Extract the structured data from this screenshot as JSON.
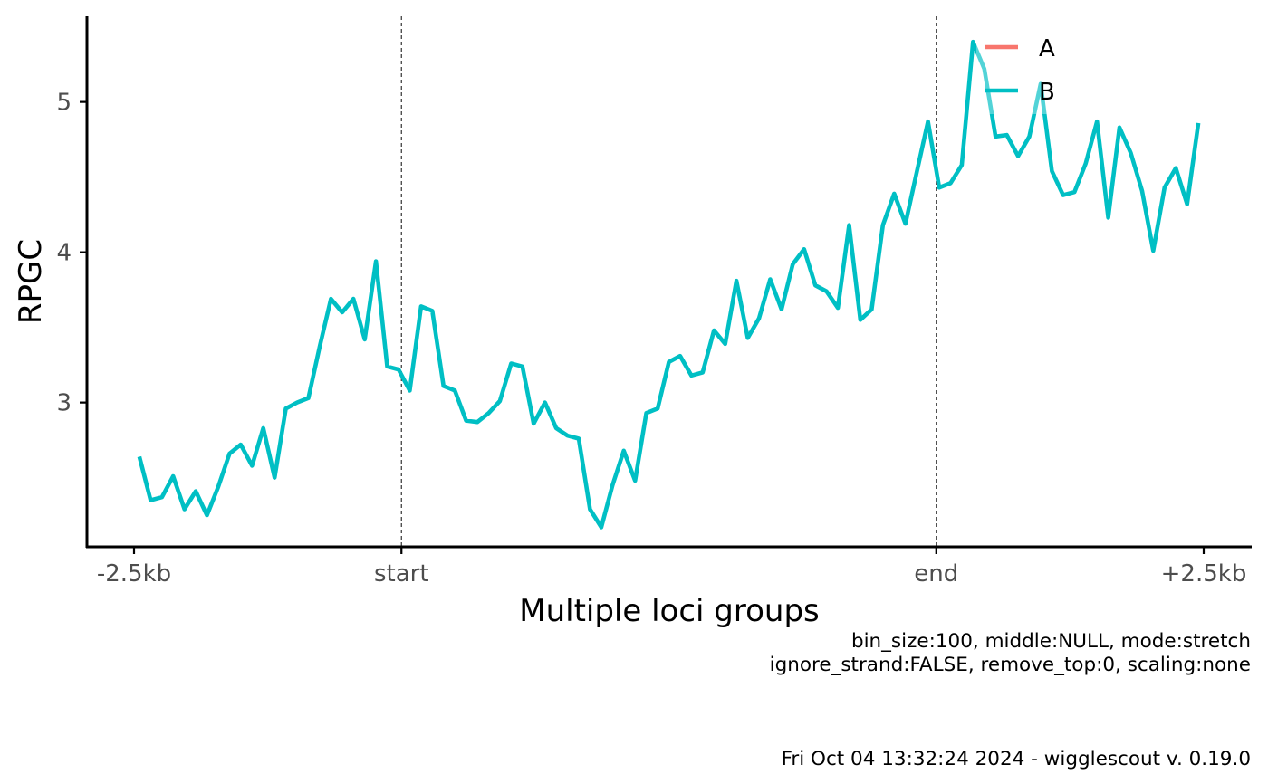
{
  "chart_data": {
    "type": "line",
    "title": "",
    "xlabel": "Multiple loci groups",
    "ylabel": "RPGC",
    "x_tick_labels": [
      "-2.5kb",
      "start",
      "end",
      "+2.5kb"
    ],
    "y_ticks": [
      3,
      4,
      5
    ],
    "ylim": [
      2.04,
      5.57
    ],
    "x_positions": {
      "-2.5kb": 0,
      "start": 25,
      "end": 75,
      "+2.5kb": 100
    },
    "vlines_at": [
      "start",
      "end"
    ],
    "legend_position": "top-right",
    "series": [
      {
        "name": "A",
        "color": "#F8766D",
        "values": []
      },
      {
        "name": "B",
        "color": "#00BFC4",
        "values": [
          2.64,
          2.35,
          2.37,
          2.51,
          2.29,
          2.41,
          2.25,
          2.44,
          2.66,
          2.72,
          2.58,
          2.83,
          2.5,
          2.96,
          3.0,
          3.03,
          3.37,
          3.69,
          3.6,
          3.69,
          3.42,
          3.94,
          3.24,
          3.22,
          3.08,
          3.64,
          3.61,
          3.11,
          3.08,
          2.88,
          2.87,
          2.93,
          3.01,
          3.26,
          3.24,
          2.86,
          3.0,
          2.83,
          2.78,
          2.76,
          2.29,
          2.17,
          2.45,
          2.68,
          2.48,
          2.93,
          2.96,
          3.27,
          3.31,
          3.18,
          3.2,
          3.48,
          3.39,
          3.81,
          3.43,
          3.56,
          3.82,
          3.62,
          3.92,
          4.02,
          3.78,
          3.74,
          3.63,
          4.18,
          3.55,
          3.62,
          4.18,
          4.39,
          4.19,
          4.53,
          4.87,
          4.43,
          4.46,
          4.58,
          5.4,
          5.22,
          4.77,
          4.78,
          4.64,
          4.77,
          5.12,
          4.54,
          4.38,
          4.4,
          4.59,
          4.87,
          4.23,
          4.83,
          4.66,
          4.41,
          4.01,
          4.43,
          4.56,
          4.32,
          4.86
        ]
      }
    ]
  },
  "caption": {
    "line1": "bin_size:100, middle:NULL, mode:stretch",
    "line2": "ignore_strand:FALSE, remove_top:0, scaling:none",
    "footer": "Fri Oct 04 13:32:24 2024 - wigglescout v. 0.19.0"
  }
}
